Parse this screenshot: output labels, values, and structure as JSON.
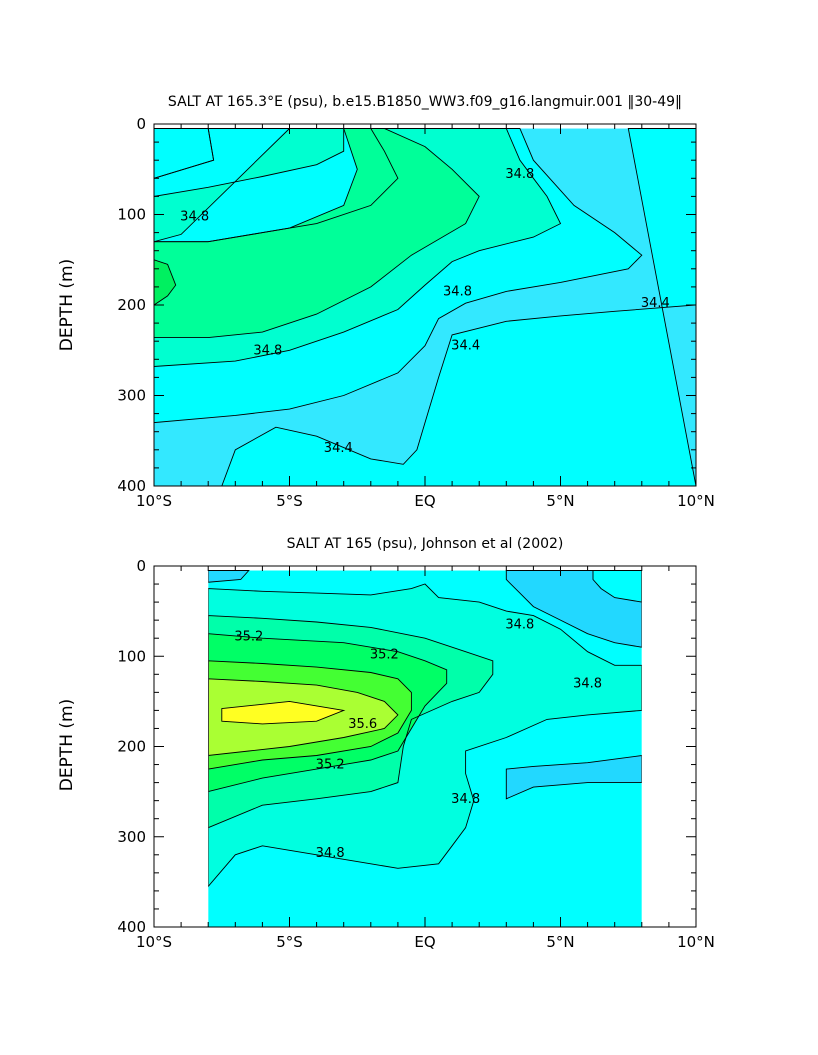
{
  "chart_data": [
    {
      "type": "heatmap",
      "title": "SALT AT 165.3°E (psu), b.e15.B1850_WW3.f09_g16.langmuir.001 ‖30-49‖",
      "xlabel": "",
      "ylabel": "DEPTH (m)",
      "xlim": [
        -10,
        10
      ],
      "ylim": [
        400,
        0
      ],
      "x_ticks": [
        -10,
        -5,
        0,
        5,
        10
      ],
      "x_tick_labels": [
        "10°S",
        "5°S",
        "EQ",
        "5°N",
        "10°N"
      ],
      "y_ticks": [
        0,
        100,
        200,
        300,
        400
      ],
      "y_tick_labels": [
        "0",
        "100",
        "200",
        "300",
        "400"
      ],
      "contour_interval": 0.2,
      "grid": false,
      "legend": "none",
      "data_extent_x": [
        -10,
        10
      ],
      "data_top_depth": 5,
      "fill_colors": {
        "34.2-34.4": "#33e8ff",
        "34.4-34.6": "#00ffff",
        "34.6-34.8": "#00ffd0",
        "34.8-35.0": "#00ff99",
        "35.0-35.2": "#00f060",
        "35.2-35.4": "#00ff40"
      },
      "regions": [
        {
          "value": 34.4,
          "points": [
            [
              -10,
              5
            ],
            [
              10,
              5
            ],
            [
              10,
              400
            ],
            [
              -10,
              400
            ]
          ]
        },
        {
          "value": 34.6,
          "points": [
            [
              -10,
              5
            ],
            [
              -8,
              5
            ],
            [
              -7.8,
              40
            ],
            [
              -10,
              60
            ]
          ]
        },
        {
          "value": 34.6,
          "points": [
            [
              -8,
              5
            ],
            [
              3.5,
              5
            ],
            [
              4,
              40
            ],
            [
              5.5,
              90
            ],
            [
              7,
              120
            ],
            [
              8,
              145
            ],
            [
              7.5,
              160
            ],
            [
              5,
              175
            ],
            [
              3,
              185
            ],
            [
              1.5,
              198
            ],
            [
              0.5,
              215
            ],
            [
              0,
              245
            ],
            [
              -1,
              275
            ],
            [
              -3,
              300
            ],
            [
              -5,
              315
            ],
            [
              -7,
              322
            ],
            [
              -10,
              330
            ],
            [
              -10,
              60
            ],
            [
              -7.8,
              40
            ]
          ]
        },
        {
          "value": 34.6,
          "points": [
            [
              7.5,
              5
            ],
            [
              10,
              5
            ],
            [
              10,
              200
            ],
            [
              7,
              207
            ],
            [
              5,
              212
            ],
            [
              3,
              218
            ],
            [
              1,
              233
            ],
            [
              0.5,
              280
            ],
            [
              0,
              330
            ],
            [
              -0.3,
              360
            ],
            [
              -0.8,
              376
            ],
            [
              -2,
              370
            ],
            [
              -4,
              345
            ],
            [
              -5.5,
              335
            ],
            [
              -7,
              360
            ],
            [
              -7.5,
              400
            ],
            [
              10,
              400
            ]
          ]
        },
        {
          "value": 34.8,
          "points": [
            [
              -5,
              5
            ],
            [
              -3,
              5
            ],
            [
              -3,
              30
            ],
            [
              -4,
              45
            ],
            [
              -6,
              58
            ],
            [
              -8,
              70
            ],
            [
              -10,
              80
            ],
            [
              -10,
              130
            ],
            [
              -8,
              130
            ],
            [
              -6,
              120
            ],
            [
              -4,
              110
            ],
            [
              -2,
              90
            ],
            [
              -1,
              60
            ],
            [
              -1.5,
              30
            ],
            [
              -2,
              5
            ],
            [
              3,
              5
            ],
            [
              3.5,
              40
            ],
            [
              4,
              60
            ],
            [
              4.5,
              80
            ],
            [
              5,
              110
            ],
            [
              4,
              125
            ],
            [
              2,
              140
            ],
            [
              1,
              152
            ],
            [
              0,
              178
            ],
            [
              -1,
              205
            ],
            [
              -3,
              230
            ],
            [
              -5,
              250
            ],
            [
              -7,
              262
            ],
            [
              -10,
              268
            ],
            [
              -10,
              130
            ],
            [
              -9,
              122
            ]
          ]
        },
        {
          "value": 35.0,
          "points": [
            [
              -10,
              130
            ],
            [
              -8,
              130
            ],
            [
              -5,
              115
            ],
            [
              -3,
              90
            ],
            [
              -2.5,
              50
            ],
            [
              -3,
              5
            ],
            [
              -1.5,
              5
            ],
            [
              0,
              25
            ],
            [
              1,
              50
            ],
            [
              2,
              80
            ],
            [
              1.5,
              110
            ],
            [
              -0.5,
              145
            ],
            [
              -2,
              180
            ],
            [
              -4,
              210
            ],
            [
              -6,
              230
            ],
            [
              -8,
              236
            ],
            [
              -10,
              236
            ]
          ]
        },
        {
          "value": 35.2,
          "points": [
            [
              -10,
              150
            ],
            [
              -9.5,
              155
            ],
            [
              -9.2,
              178
            ],
            [
              -9.5,
              190
            ],
            [
              -10,
              200
            ]
          ]
        }
      ],
      "contour_labels": [
        {
          "text": "34.8",
          "x": -8.5,
          "y": 102
        },
        {
          "text": "34.8",
          "x": 3.5,
          "y": 55
        },
        {
          "text": "34.8",
          "x": 1.2,
          "y": 185
        },
        {
          "text": "34.8",
          "x": -5.8,
          "y": 250
        },
        {
          "text": "34.4",
          "x": 1.5,
          "y": 245
        },
        {
          "text": "34.4",
          "x": 8.5,
          "y": 198
        },
        {
          "text": "34.4",
          "x": -3.2,
          "y": 358
        }
      ]
    },
    {
      "type": "heatmap",
      "title": "SALT AT 165 (psu), Johnson et al (2002)",
      "xlabel": "",
      "ylabel": "DEPTH (m)",
      "xlim": [
        -10,
        10
      ],
      "ylim": [
        400,
        0
      ],
      "x_ticks": [
        -10,
        -5,
        0,
        5,
        10
      ],
      "x_tick_labels": [
        "10°S",
        "5°S",
        "EQ",
        "5°N",
        "10°N"
      ],
      "y_ticks": [
        0,
        100,
        200,
        300,
        400
      ],
      "y_tick_labels": [
        "0",
        "100",
        "200",
        "300",
        "400"
      ],
      "contour_interval": 0.2,
      "grid": false,
      "legend": "none",
      "data_extent_x": [
        -8,
        8
      ],
      "data_top_depth": 5,
      "fill_colors": {
        "34.2-34.4": "#22d8ff",
        "34.4-34.6": "#00ffff",
        "34.6-34.8": "#00ffe0",
        "34.8-35.0": "#00ffaa",
        "35.0-35.2": "#00ff66",
        "35.2-35.4": "#44ff33",
        "35.4-35.6": "#aaff33",
        "35.6-35.8": "#ffff22",
        "35.8-36.0": "#ffe030"
      },
      "regions": [
        {
          "value": 34.6,
          "points": [
            [
              -8,
              5
            ],
            [
              8,
              5
            ],
            [
              8,
              400
            ],
            [
              -8,
              400
            ]
          ]
        },
        {
          "value": 34.4,
          "points": [
            [
              -8,
              5
            ],
            [
              -6.5,
              5
            ],
            [
              -6.8,
              15
            ],
            [
              -8,
              18
            ]
          ]
        },
        {
          "value": 34.4,
          "points": [
            [
              3,
              5
            ],
            [
              8,
              5
            ],
            [
              8,
              90
            ],
            [
              7,
              85
            ],
            [
              6,
              75
            ],
            [
              5,
              60
            ],
            [
              4,
              45
            ],
            [
              3.5,
              30
            ],
            [
              3,
              15
            ]
          ]
        },
        {
          "value": 34.4,
          "points": [
            [
              3,
              225
            ],
            [
              4,
              222
            ],
            [
              6,
              218
            ],
            [
              8,
              210
            ],
            [
              8,
              240
            ],
            [
              6,
              240
            ],
            [
              4,
              245
            ],
            [
              3,
              258
            ]
          ]
        },
        {
          "value": 34.2,
          "points": [
            [
              6.2,
              5
            ],
            [
              8,
              5
            ],
            [
              8,
              40
            ],
            [
              7,
              35
            ],
            [
              6.5,
              25
            ],
            [
              6.2,
              15
            ]
          ]
        },
        {
          "value": 34.8,
          "points": [
            [
              -8,
              25
            ],
            [
              -6,
              28
            ],
            [
              -4,
              30
            ],
            [
              -2,
              32
            ],
            [
              -0.5,
              25
            ],
            [
              0,
              20
            ],
            [
              0.5,
              35
            ],
            [
              2,
              40
            ],
            [
              3,
              50
            ],
            [
              4,
              55
            ],
            [
              5,
              70
            ],
            [
              6,
              95
            ],
            [
              7,
              110
            ],
            [
              8,
              110
            ],
            [
              8,
              160
            ],
            [
              6,
              165
            ],
            [
              4.5,
              170
            ],
            [
              3,
              190
            ],
            [
              1.5,
              205
            ],
            [
              1.5,
              230
            ],
            [
              1.8,
              260
            ],
            [
              1.5,
              290
            ],
            [
              1,
              310
            ],
            [
              0.5,
              330
            ],
            [
              -1,
              335
            ],
            [
              -2,
              330
            ],
            [
              -4,
              320
            ],
            [
              -6,
              310
            ],
            [
              -7,
              320
            ],
            [
              -8,
              355
            ]
          ]
        },
        {
          "value": 35.0,
          "points": [
            [
              -8,
              55
            ],
            [
              -6,
              58
            ],
            [
              -4,
              62
            ],
            [
              -2,
              68
            ],
            [
              0,
              80
            ],
            [
              1.5,
              95
            ],
            [
              2.5,
              105
            ],
            [
              2.5,
              120
            ],
            [
              2,
              140
            ],
            [
              1,
              150
            ],
            [
              -0.5,
              170
            ],
            [
              -0.8,
              200
            ],
            [
              -1,
              240
            ],
            [
              -2,
              250
            ],
            [
              -4,
              258
            ],
            [
              -6,
              265
            ],
            [
              -8,
              290
            ]
          ]
        },
        {
          "value": 35.2,
          "points": [
            [
              -8,
              75
            ],
            [
              -6,
              80
            ],
            [
              -3,
              85
            ],
            [
              -1,
              95
            ],
            [
              0,
              105
            ],
            [
              0.8,
              115
            ],
            [
              0.8,
              130
            ],
            [
              0,
              155
            ],
            [
              -0.5,
              180
            ],
            [
              -1,
              205
            ],
            [
              -2,
              215
            ],
            [
              -4,
              225
            ],
            [
              -6,
              235
            ],
            [
              -8,
              250
            ]
          ]
        },
        {
          "value": 35.4,
          "points": [
            [
              -8,
              105
            ],
            [
              -6,
              108
            ],
            [
              -4,
              112
            ],
            [
              -2,
              118
            ],
            [
              -1,
              125
            ],
            [
              -0.5,
              140
            ],
            [
              -0.5,
              160
            ],
            [
              -1,
              185
            ],
            [
              -2,
              200
            ],
            [
              -4,
              210
            ],
            [
              -6,
              215
            ],
            [
              -8,
              225
            ]
          ]
        },
        {
          "value": 35.6,
          "points": [
            [
              -8,
              125
            ],
            [
              -6,
              128
            ],
            [
              -4,
              132
            ],
            [
              -2.5,
              140
            ],
            [
              -1.5,
              150
            ],
            [
              -1,
              165
            ],
            [
              -1.5,
              180
            ],
            [
              -3,
              190
            ],
            [
              -5,
              200
            ],
            [
              -6.5,
              205
            ],
            [
              -8,
              210
            ]
          ]
        },
        {
          "value": 35.8,
          "points": [
            [
              -7.5,
              158
            ],
            [
              -5,
              150
            ],
            [
              -3,
              160
            ],
            [
              -4,
              172
            ],
            [
              -6,
              175
            ],
            [
              -7.5,
              172
            ]
          ]
        }
      ],
      "contour_labels": [
        {
          "text": "35.2",
          "x": -6.5,
          "y": 78
        },
        {
          "text": "35.2",
          "x": -1.5,
          "y": 98
        },
        {
          "text": "35.6",
          "x": -2.3,
          "y": 175
        },
        {
          "text": "35.2",
          "x": -3.5,
          "y": 220
        },
        {
          "text": "34.8",
          "x": 3.5,
          "y": 65
        },
        {
          "text": "34.8",
          "x": 6,
          "y": 130
        },
        {
          "text": "34.8",
          "x": 1.5,
          "y": 258
        },
        {
          "text": "34.8",
          "x": -3.5,
          "y": 318
        }
      ]
    }
  ]
}
